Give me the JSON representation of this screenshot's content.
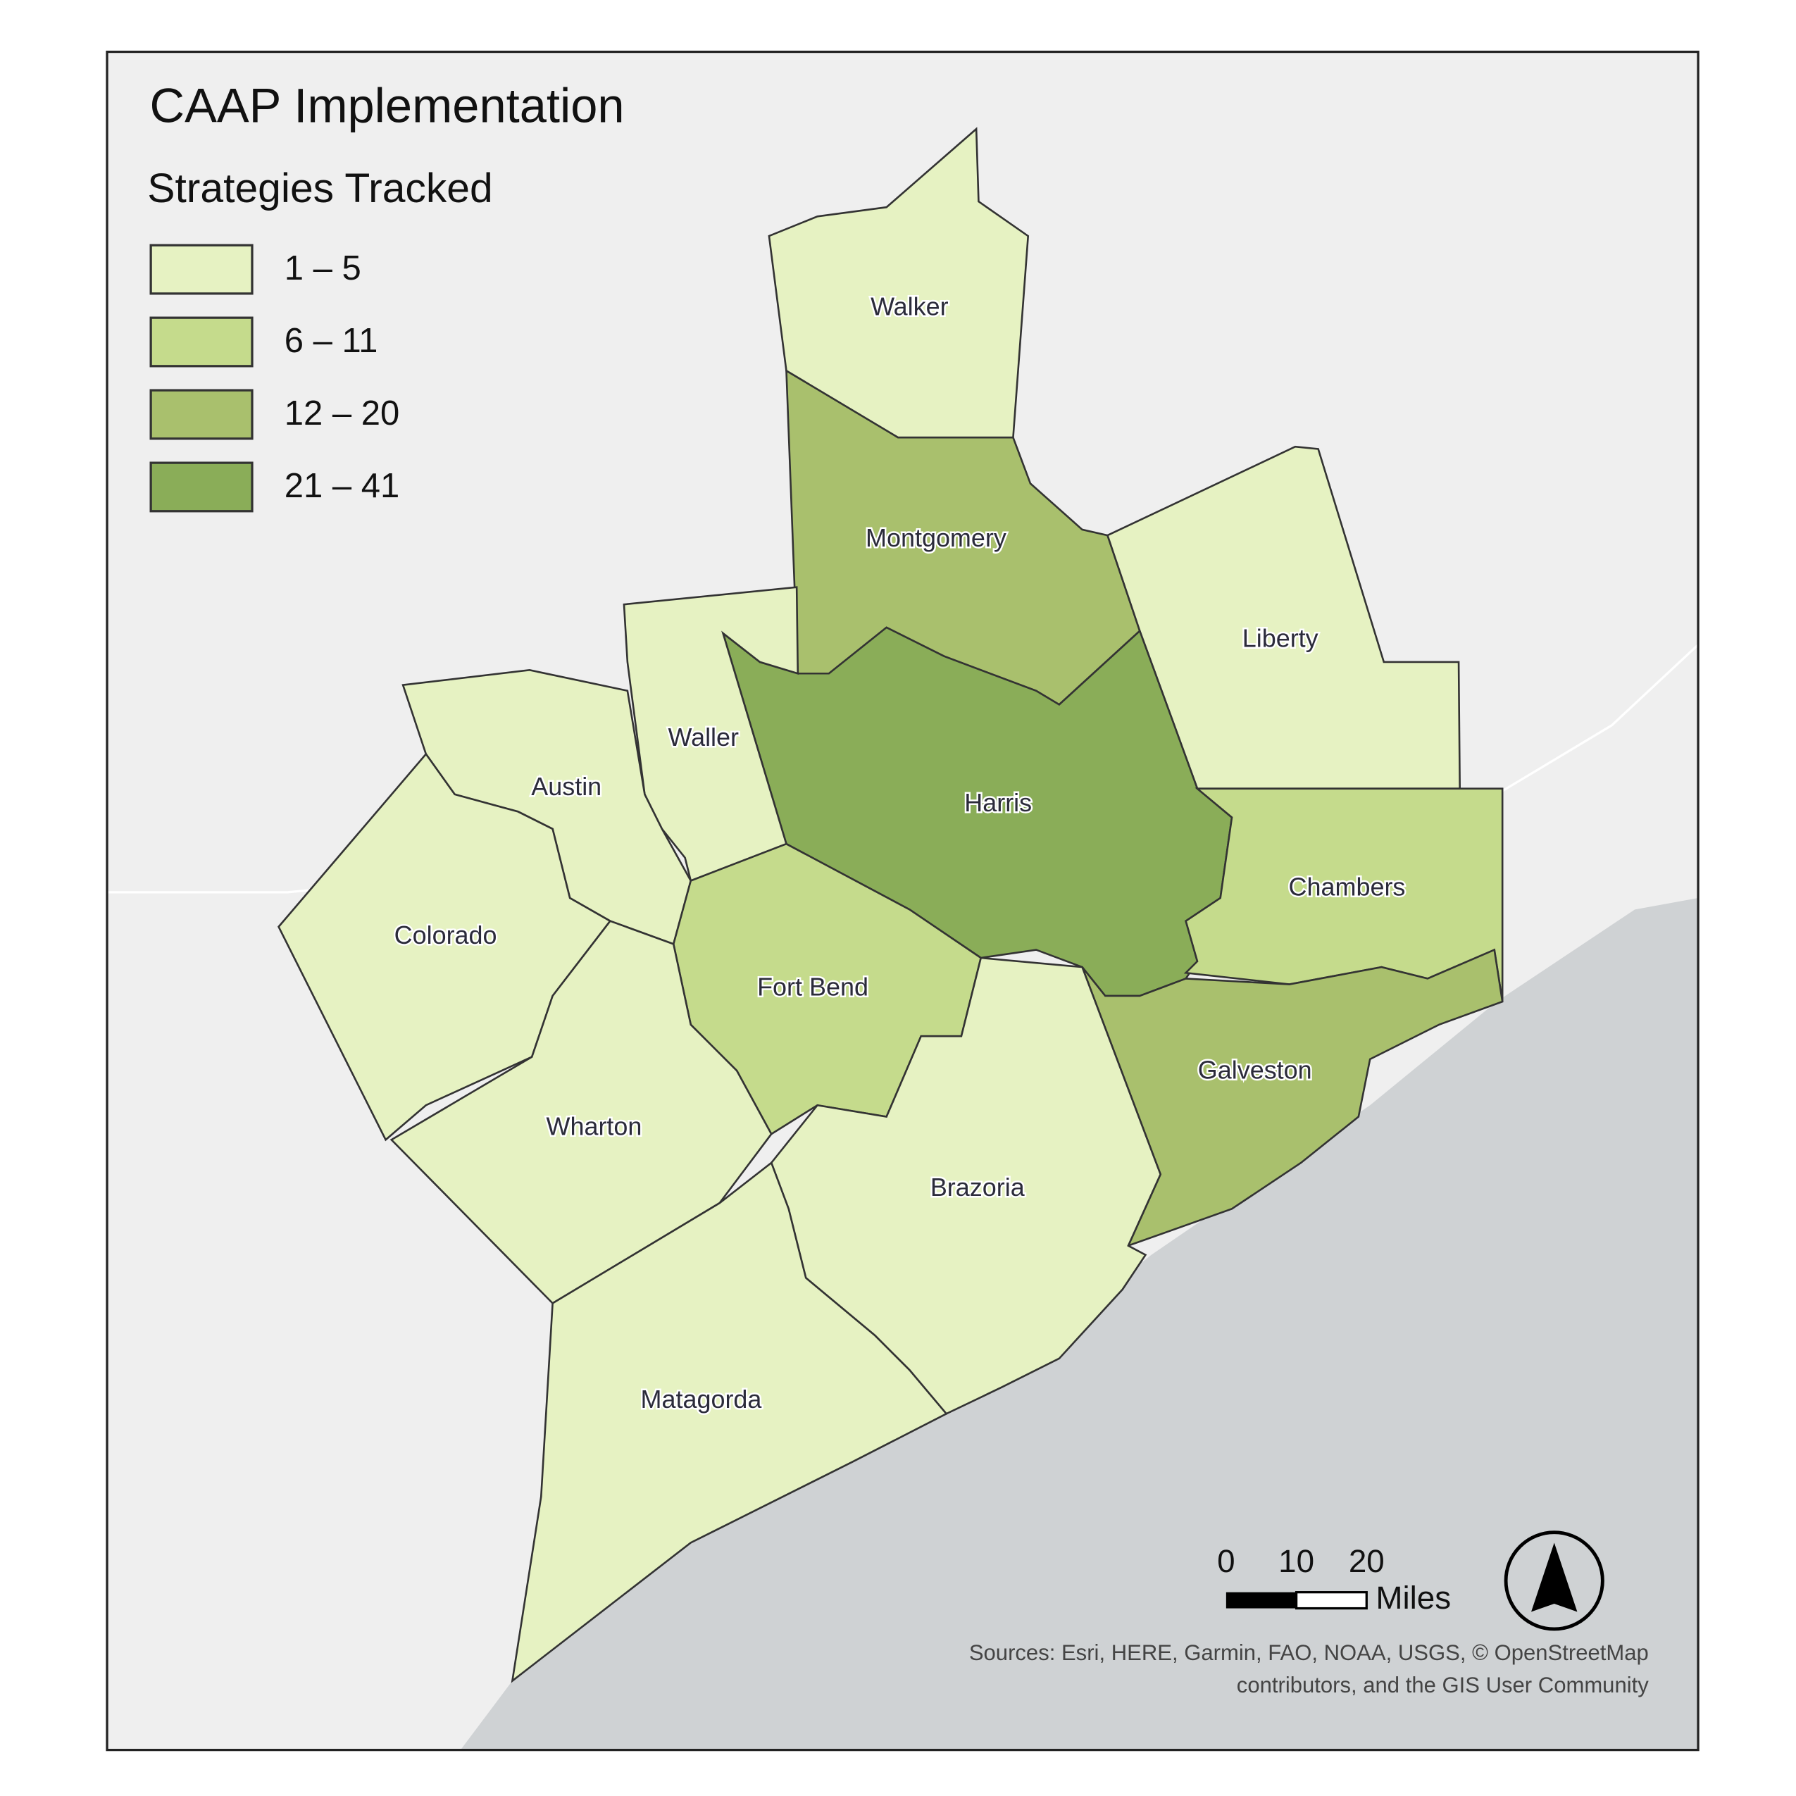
{
  "title": "CAAP Implementation",
  "legend": {
    "title": "Strategies Tracked",
    "classes": [
      {
        "label": "1 – 5",
        "color": "#e6f2c2"
      },
      {
        "label": "6 – 11",
        "color": "#c5db8c"
      },
      {
        "label": "12 – 20",
        "color": "#a9c06d"
      },
      {
        "label": "21 – 41",
        "color": "#8aad58"
      }
    ]
  },
  "counties": [
    {
      "name": "Walker",
      "class": 0
    },
    {
      "name": "Montgomery",
      "class": 2
    },
    {
      "name": "Liberty",
      "class": 0
    },
    {
      "name": "Harris",
      "class": 3
    },
    {
      "name": "Waller",
      "class": 0
    },
    {
      "name": "Austin",
      "class": 0
    },
    {
      "name": "Colorado",
      "class": 0
    },
    {
      "name": "Fort Bend",
      "class": 1
    },
    {
      "name": "Chambers",
      "class": 1
    },
    {
      "name": "Galveston",
      "class": 2
    },
    {
      "name": "Wharton",
      "class": 0
    },
    {
      "name": "Brazoria",
      "class": 0
    },
    {
      "name": "Matagorda",
      "class": 0
    }
  ],
  "scalebar": {
    "ticks": [
      0,
      10,
      20
    ],
    "unit": "Miles"
  },
  "sources": [
    "Sources: Esri, HERE, Garmin, FAO, NOAA, USGS, © OpenStreetMap",
    "contributors, and the GIS User Community"
  ]
}
